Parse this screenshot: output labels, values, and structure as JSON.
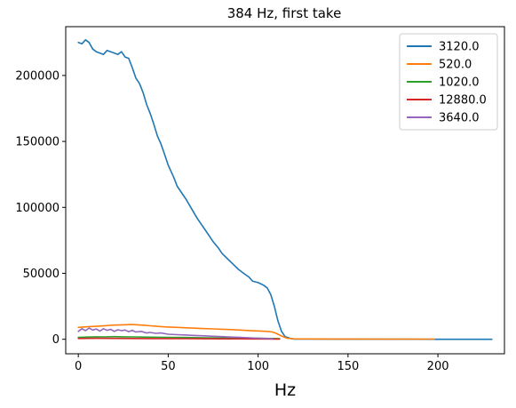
{
  "chart_data": {
    "type": "line",
    "title": "384 Hz, first take",
    "xlabel": "Hz",
    "ylabel": "",
    "xlim": [
      -7,
      237
    ],
    "ylim": [
      -11000,
      237000
    ],
    "xticks": [
      0,
      50,
      100,
      150,
      200
    ],
    "yticks": [
      0,
      50000,
      100000,
      150000,
      200000
    ],
    "grid": false,
    "legend_position": "top-right",
    "series": [
      {
        "name": "3120.0",
        "color": "#1f77b4",
        "points": [
          [
            0,
            225000
          ],
          [
            2,
            224000
          ],
          [
            4,
            227000
          ],
          [
            6,
            225000
          ],
          [
            8,
            220000
          ],
          [
            10,
            218000
          ],
          [
            12,
            217000
          ],
          [
            14,
            216000
          ],
          [
            16,
            219000
          ],
          [
            18,
            218000
          ],
          [
            20,
            217000
          ],
          [
            22,
            216000
          ],
          [
            24,
            218000
          ],
          [
            26,
            214000
          ],
          [
            28,
            213000
          ],
          [
            30,
            206000
          ],
          [
            32,
            198000
          ],
          [
            34,
            194000
          ],
          [
            36,
            187000
          ],
          [
            38,
            178000
          ],
          [
            40,
            171000
          ],
          [
            42,
            163000
          ],
          [
            44,
            154000
          ],
          [
            46,
            148000
          ],
          [
            48,
            140000
          ],
          [
            50,
            132000
          ],
          [
            53,
            123000
          ],
          [
            55,
            116000
          ],
          [
            58,
            110000
          ],
          [
            60,
            106000
          ],
          [
            63,
            99000
          ],
          [
            66,
            92000
          ],
          [
            68,
            88000
          ],
          [
            70,
            84000
          ],
          [
            73,
            78000
          ],
          [
            75,
            74000
          ],
          [
            78,
            69000
          ],
          [
            80,
            65000
          ],
          [
            83,
            61000
          ],
          [
            86,
            57000
          ],
          [
            89,
            53000
          ],
          [
            92,
            50000
          ],
          [
            95,
            47000
          ],
          [
            97,
            44000
          ],
          [
            100,
            43000
          ],
          [
            103,
            41000
          ],
          [
            105,
            39000
          ],
          [
            107,
            34000
          ],
          [
            109,
            25000
          ],
          [
            111,
            14000
          ],
          [
            113,
            6000
          ],
          [
            115,
            2000
          ],
          [
            118,
            600
          ],
          [
            120,
            200
          ],
          [
            130,
            100
          ],
          [
            150,
            50
          ],
          [
            180,
            50
          ],
          [
            200,
            0
          ],
          [
            230,
            0
          ]
        ]
      },
      {
        "name": "520.0",
        "color": "#ff7f0e",
        "points": [
          [
            0,
            9000
          ],
          [
            5,
            9500
          ],
          [
            10,
            9800
          ],
          [
            15,
            10300
          ],
          [
            20,
            10800
          ],
          [
            25,
            11000
          ],
          [
            30,
            11200
          ],
          [
            35,
            10800
          ],
          [
            40,
            10200
          ],
          [
            45,
            9700
          ],
          [
            50,
            9300
          ],
          [
            55,
            9000
          ],
          [
            60,
            8700
          ],
          [
            65,
            8400
          ],
          [
            70,
            8100
          ],
          [
            75,
            7900
          ],
          [
            80,
            7600
          ],
          [
            85,
            7300
          ],
          [
            90,
            7000
          ],
          [
            95,
            6600
          ],
          [
            100,
            6300
          ],
          [
            105,
            6000
          ],
          [
            108,
            5500
          ],
          [
            110,
            4500
          ],
          [
            113,
            2500
          ],
          [
            116,
            800
          ],
          [
            120,
            300
          ],
          [
            140,
            200
          ],
          [
            170,
            150
          ],
          [
            198,
            100
          ]
        ]
      },
      {
        "name": "1020.0",
        "color": "#2ca02c",
        "points": [
          [
            0,
            1500
          ],
          [
            5,
            1700
          ],
          [
            10,
            1900
          ],
          [
            15,
            1800
          ],
          [
            20,
            2000
          ],
          [
            25,
            1900
          ],
          [
            30,
            1800
          ],
          [
            40,
            1600
          ],
          [
            50,
            1400
          ],
          [
            60,
            1300
          ],
          [
            70,
            1100
          ],
          [
            80,
            1000
          ],
          [
            90,
            900
          ],
          [
            100,
            700
          ],
          [
            110,
            500
          ],
          [
            112,
            400
          ]
        ]
      },
      {
        "name": "12880.0",
        "color": "#d62728",
        "points": [
          [
            0,
            600
          ],
          [
            10,
            700
          ],
          [
            20,
            650
          ],
          [
            30,
            600
          ],
          [
            40,
            550
          ],
          [
            50,
            500
          ],
          [
            60,
            450
          ],
          [
            70,
            400
          ],
          [
            80,
            350
          ],
          [
            90,
            300
          ],
          [
            100,
            250
          ],
          [
            110,
            200
          ],
          [
            112,
            200
          ]
        ]
      },
      {
        "name": "3640.0",
        "color": "#9467bd",
        "points": [
          [
            0,
            6000
          ],
          [
            2,
            8000
          ],
          [
            4,
            6500
          ],
          [
            6,
            8500
          ],
          [
            8,
            7000
          ],
          [
            10,
            7800
          ],
          [
            12,
            6200
          ],
          [
            14,
            8000
          ],
          [
            16,
            6800
          ],
          [
            18,
            7500
          ],
          [
            20,
            6000
          ],
          [
            22,
            7200
          ],
          [
            24,
            6500
          ],
          [
            26,
            7000
          ],
          [
            28,
            5800
          ],
          [
            30,
            6800
          ],
          [
            32,
            5500
          ],
          [
            35,
            6000
          ],
          [
            38,
            4800
          ],
          [
            40,
            5200
          ],
          [
            43,
            4500
          ],
          [
            46,
            4800
          ],
          [
            50,
            3800
          ],
          [
            55,
            3500
          ],
          [
            60,
            3200
          ],
          [
            65,
            2900
          ],
          [
            70,
            2600
          ],
          [
            75,
            2300
          ],
          [
            80,
            2000
          ],
          [
            85,
            1700
          ],
          [
            90,
            1400
          ],
          [
            95,
            1100
          ],
          [
            100,
            800
          ],
          [
            105,
            600
          ],
          [
            108,
            400
          ]
        ]
      }
    ]
  }
}
